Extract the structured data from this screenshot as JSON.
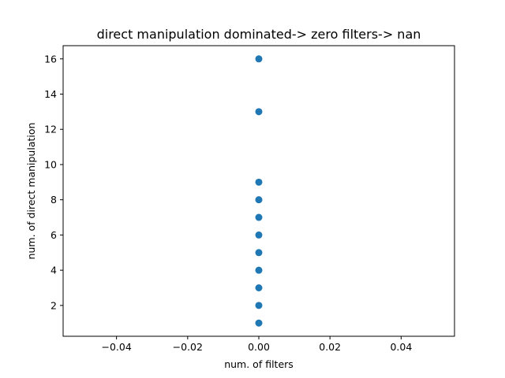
{
  "chart_data": {
    "type": "scatter",
    "title": "direct manipulation dominated-> zero filters-> nan",
    "xlabel": "num. of filters",
    "ylabel": "num. of direct manipulation",
    "xlim": [
      -0.055,
      0.055
    ],
    "ylim": [
      0.25,
      16.75
    ],
    "xticks": [
      -0.04,
      -0.02,
      0.0,
      0.02,
      0.04
    ],
    "xtick_labels": [
      "−0.04",
      "−0.02",
      "0.00",
      "0.02",
      "0.04"
    ],
    "yticks": [
      2,
      4,
      6,
      8,
      10,
      12,
      14,
      16
    ],
    "ytick_labels": [
      "2",
      "4",
      "6",
      "8",
      "10",
      "12",
      "14",
      "16"
    ],
    "grid": false,
    "marker_color": "#1f77b4",
    "points": [
      {
        "x": 0,
        "y": 1
      },
      {
        "x": 0,
        "y": 2
      },
      {
        "x": 0,
        "y": 3
      },
      {
        "x": 0,
        "y": 4
      },
      {
        "x": 0,
        "y": 5
      },
      {
        "x": 0,
        "y": 6
      },
      {
        "x": 0,
        "y": 7
      },
      {
        "x": 0,
        "y": 8
      },
      {
        "x": 0,
        "y": 9
      },
      {
        "x": 0,
        "y": 13
      },
      {
        "x": 0,
        "y": 16
      }
    ]
  }
}
